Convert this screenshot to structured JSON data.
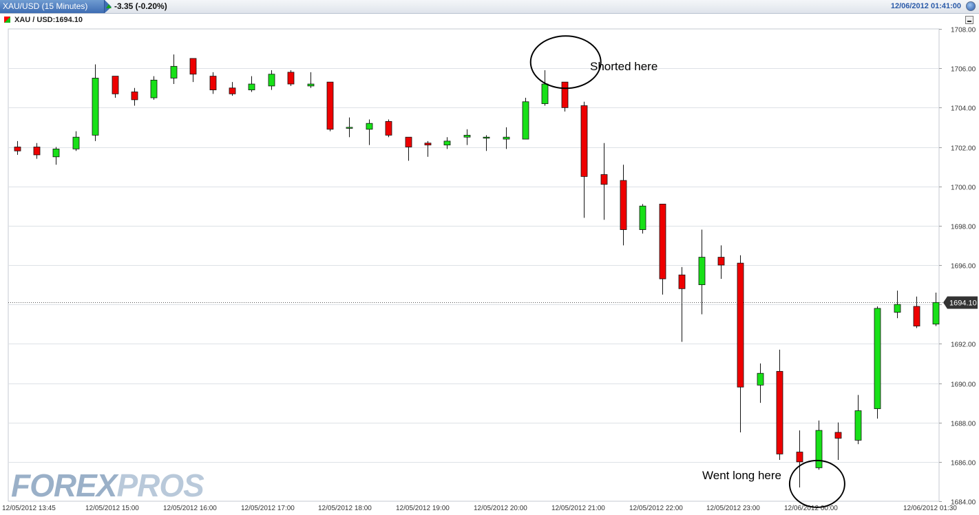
{
  "header": {
    "instrument_tab": "XAU/USD (15 Minutes)",
    "change": "-3.35 (-0.20%)",
    "datetime": "12/06/2012 01:41:00"
  },
  "legend": {
    "label": "XAU / USD:1694.10"
  },
  "logo": {
    "part1": "FOREX",
    "part2": "PROS"
  },
  "colors": {
    "up": "#18e018",
    "down": "#ee0000",
    "grid": "#dde1e6",
    "accent": "#2a5aa8"
  },
  "icons": {
    "globe": "globe-icon",
    "minimize": "minimize-icon",
    "triangle": "triangle-up-icon"
  },
  "chart_data": {
    "type": "candlestick",
    "ylim": [
      1684,
      1708
    ],
    "yticks": [
      "1708.00",
      "1706.00",
      "1704.00",
      "1702.00",
      "1700.00",
      "1698.00",
      "1696.00",
      "1694.00",
      "1692.00",
      "1690.00",
      "1688.00",
      "1686.00",
      "1684.00"
    ],
    "xticks": [
      "12/05/2012 13:45",
      "12/05/2012 15:00",
      "12/05/2012 16:00",
      "12/05/2012 17:00",
      "12/05/2012 18:00",
      "12/05/2012 19:00",
      "12/05/2012 20:00",
      "12/05/2012 21:00",
      "12/05/2012 22:00",
      "12/05/2012 23:00",
      "12/06/2012 00:00",
      "12/06/2012 01:30"
    ],
    "current_price": 1694.1,
    "current_label": "1694.10",
    "candles": [
      {
        "o": 1702.0,
        "h": 1702.3,
        "l": 1701.6,
        "c": 1701.8
      },
      {
        "o": 1702.0,
        "h": 1702.2,
        "l": 1701.4,
        "c": 1701.6
      },
      {
        "o": 1701.5,
        "h": 1702.0,
        "l": 1701.1,
        "c": 1701.9
      },
      {
        "o": 1701.9,
        "h": 1702.8,
        "l": 1701.8,
        "c": 1702.5
      },
      {
        "o": 1702.6,
        "h": 1706.2,
        "l": 1702.3,
        "c": 1705.5
      },
      {
        "o": 1705.6,
        "h": 1705.6,
        "l": 1704.5,
        "c": 1704.7
      },
      {
        "o": 1704.8,
        "h": 1705.0,
        "l": 1704.1,
        "c": 1704.4
      },
      {
        "o": 1704.5,
        "h": 1705.6,
        "l": 1704.4,
        "c": 1705.4
      },
      {
        "o": 1705.5,
        "h": 1706.7,
        "l": 1705.2,
        "c": 1706.1
      },
      {
        "o": 1706.5,
        "h": 1706.5,
        "l": 1705.3,
        "c": 1705.7
      },
      {
        "o": 1705.6,
        "h": 1705.8,
        "l": 1704.7,
        "c": 1704.9
      },
      {
        "o": 1705.0,
        "h": 1705.3,
        "l": 1704.6,
        "c": 1704.7
      },
      {
        "o": 1704.9,
        "h": 1705.6,
        "l": 1704.8,
        "c": 1705.2
      },
      {
        "o": 1705.1,
        "h": 1705.9,
        "l": 1704.9,
        "c": 1705.7
      },
      {
        "o": 1705.8,
        "h": 1705.9,
        "l": 1705.1,
        "c": 1705.2
      },
      {
        "o": 1705.1,
        "h": 1705.8,
        "l": 1705.0,
        "c": 1705.2
      },
      {
        "o": 1705.3,
        "h": 1705.3,
        "l": 1702.8,
        "c": 1702.9
      },
      {
        "o": 1703.0,
        "h": 1703.5,
        "l": 1702.5,
        "c": 1703.0
      },
      {
        "o": 1702.9,
        "h": 1703.4,
        "l": 1702.1,
        "c": 1703.2
      },
      {
        "o": 1703.3,
        "h": 1703.4,
        "l": 1702.5,
        "c": 1702.6
      },
      {
        "o": 1702.5,
        "h": 1702.5,
        "l": 1701.3,
        "c": 1702.0
      },
      {
        "o": 1702.2,
        "h": 1702.3,
        "l": 1701.5,
        "c": 1702.1
      },
      {
        "o": 1702.1,
        "h": 1702.5,
        "l": 1701.9,
        "c": 1702.3
      },
      {
        "o": 1702.5,
        "h": 1702.9,
        "l": 1702.1,
        "c": 1702.6
      },
      {
        "o": 1702.5,
        "h": 1702.6,
        "l": 1701.8,
        "c": 1702.5
      },
      {
        "o": 1702.4,
        "h": 1703.0,
        "l": 1701.9,
        "c": 1702.5
      },
      {
        "o": 1702.4,
        "h": 1704.5,
        "l": 1702.4,
        "c": 1704.3
      },
      {
        "o": 1704.2,
        "h": 1705.9,
        "l": 1704.1,
        "c": 1705.2
      },
      {
        "o": 1705.3,
        "h": 1705.3,
        "l": 1703.8,
        "c": 1704.0
      },
      {
        "o": 1704.1,
        "h": 1704.3,
        "l": 1698.4,
        "c": 1700.5
      },
      {
        "o": 1700.6,
        "h": 1702.2,
        "l": 1698.3,
        "c": 1700.1
      },
      {
        "o": 1700.3,
        "h": 1701.1,
        "l": 1697.0,
        "c": 1697.8
      },
      {
        "o": 1697.8,
        "h": 1699.1,
        "l": 1697.6,
        "c": 1699.0
      },
      {
        "o": 1699.1,
        "h": 1699.1,
        "l": 1694.5,
        "c": 1695.3
      },
      {
        "o": 1695.5,
        "h": 1695.9,
        "l": 1692.1,
        "c": 1694.8
      },
      {
        "o": 1695.0,
        "h": 1697.8,
        "l": 1693.5,
        "c": 1696.4
      },
      {
        "o": 1696.4,
        "h": 1697.0,
        "l": 1695.3,
        "c": 1696.0
      },
      {
        "o": 1696.1,
        "h": 1696.5,
        "l": 1687.5,
        "c": 1689.8
      },
      {
        "o": 1689.9,
        "h": 1691.0,
        "l": 1689.0,
        "c": 1690.5
      },
      {
        "o": 1690.6,
        "h": 1691.7,
        "l": 1686.1,
        "c": 1686.4
      },
      {
        "o": 1686.5,
        "h": 1687.6,
        "l": 1684.7,
        "c": 1686.0
      },
      {
        "o": 1685.7,
        "h": 1688.1,
        "l": 1685.6,
        "c": 1687.6
      },
      {
        "o": 1687.5,
        "h": 1688.0,
        "l": 1686.1,
        "c": 1687.2
      },
      {
        "o": 1687.1,
        "h": 1689.4,
        "l": 1686.9,
        "c": 1688.6
      },
      {
        "o": 1688.7,
        "h": 1693.9,
        "l": 1688.2,
        "c": 1693.8
      },
      {
        "o": 1693.6,
        "h": 1694.7,
        "l": 1693.3,
        "c": 1694.0
      },
      {
        "o": 1693.9,
        "h": 1694.4,
        "l": 1692.8,
        "c": 1692.9
      },
      {
        "o": 1693.0,
        "h": 1694.6,
        "l": 1692.9,
        "c": 1694.1
      }
    ],
    "annotations": [
      {
        "text": "Shorted here",
        "candle": 28,
        "price": 1706.1
      },
      {
        "text": "Went long here",
        "candle": 41,
        "price": 1685.3
      }
    ]
  }
}
